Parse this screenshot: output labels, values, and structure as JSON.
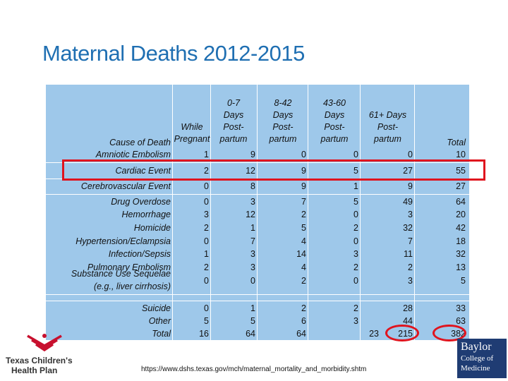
{
  "title": "Maternal Deaths 2012-2015",
  "header": {
    "cause": "Cause of Death",
    "while_line1": "While",
    "while_line2": "Pregnant",
    "c07": [
      "0-7",
      "Days",
      "Post-",
      "partum"
    ],
    "c842": [
      "8-42",
      "Days",
      "Post-",
      "partum"
    ],
    "c4360": [
      "43-60",
      "Days",
      "Post-",
      "partum"
    ],
    "c61": [
      "61+ Days",
      "Post-",
      "partum"
    ],
    "total": "Total"
  },
  "rows": [
    {
      "label": "Amniotic Embolism",
      "vals": [
        "1",
        "9",
        "0",
        "0",
        "0",
        "10"
      ]
    },
    {
      "label": "Cardiac Event",
      "vals": [
        "2",
        "12",
        "9",
        "5",
        "27",
        "55"
      ]
    },
    {
      "label": "Cerebrovascular Event",
      "vals": [
        "0",
        "8",
        "9",
        "1",
        "9",
        "27"
      ]
    },
    {
      "label": "Drug Overdose",
      "vals": [
        "0",
        "3",
        "7",
        "5",
        "49",
        "64"
      ]
    },
    {
      "label": "Hemorrhage",
      "vals": [
        "3",
        "12",
        "2",
        "0",
        "3",
        "20"
      ]
    },
    {
      "label": "Homicide",
      "vals": [
        "2",
        "1",
        "5",
        "2",
        "32",
        "42"
      ]
    },
    {
      "label": "Hypertension/Eclampsia",
      "vals": [
        "0",
        "7",
        "4",
        "0",
        "7",
        "18"
      ]
    },
    {
      "label": "Infection/Sepsis",
      "vals": [
        "1",
        "3",
        "14",
        "3",
        "11",
        "32"
      ]
    },
    {
      "label": "Pulmonary Embolism",
      "vals": [
        "2",
        "3",
        "4",
        "2",
        "2",
        "13"
      ]
    },
    {
      "label1": "Substance Use Sequelae",
      "label2": "(e.g., liver cirrhosis)",
      "vals": [
        "0",
        "0",
        "2",
        "0",
        "3",
        "5"
      ]
    },
    {
      "label": "Suicide",
      "vals": [
        "0",
        "1",
        "2",
        "2",
        "28",
        "33"
      ]
    },
    {
      "label": "Other",
      "vals": [
        "5",
        "5",
        "6",
        "3",
        "44",
        "63"
      ]
    },
    {
      "label": "Total",
      "vals": [
        "16",
        "64",
        "64",
        "23",
        "215",
        "382"
      ]
    }
  ],
  "source_url": "https://www.dshs.texas.gov/mch/maternal_mortality_and_morbidity.shtm",
  "logo_left": {
    "line1": "Texas Children's",
    "line2": "Health Plan",
    "color": "#c8102e"
  },
  "logo_right": {
    "line1": "Baylor",
    "line2": "College of",
    "line3": "Medicine",
    "bg": "#1f3c73"
  },
  "colors": {
    "title": "#1f6fb2",
    "table_bg": "#9ec8ea",
    "highlight_red": "#e0141e",
    "highlight_blue": "#1f4fa0"
  }
}
